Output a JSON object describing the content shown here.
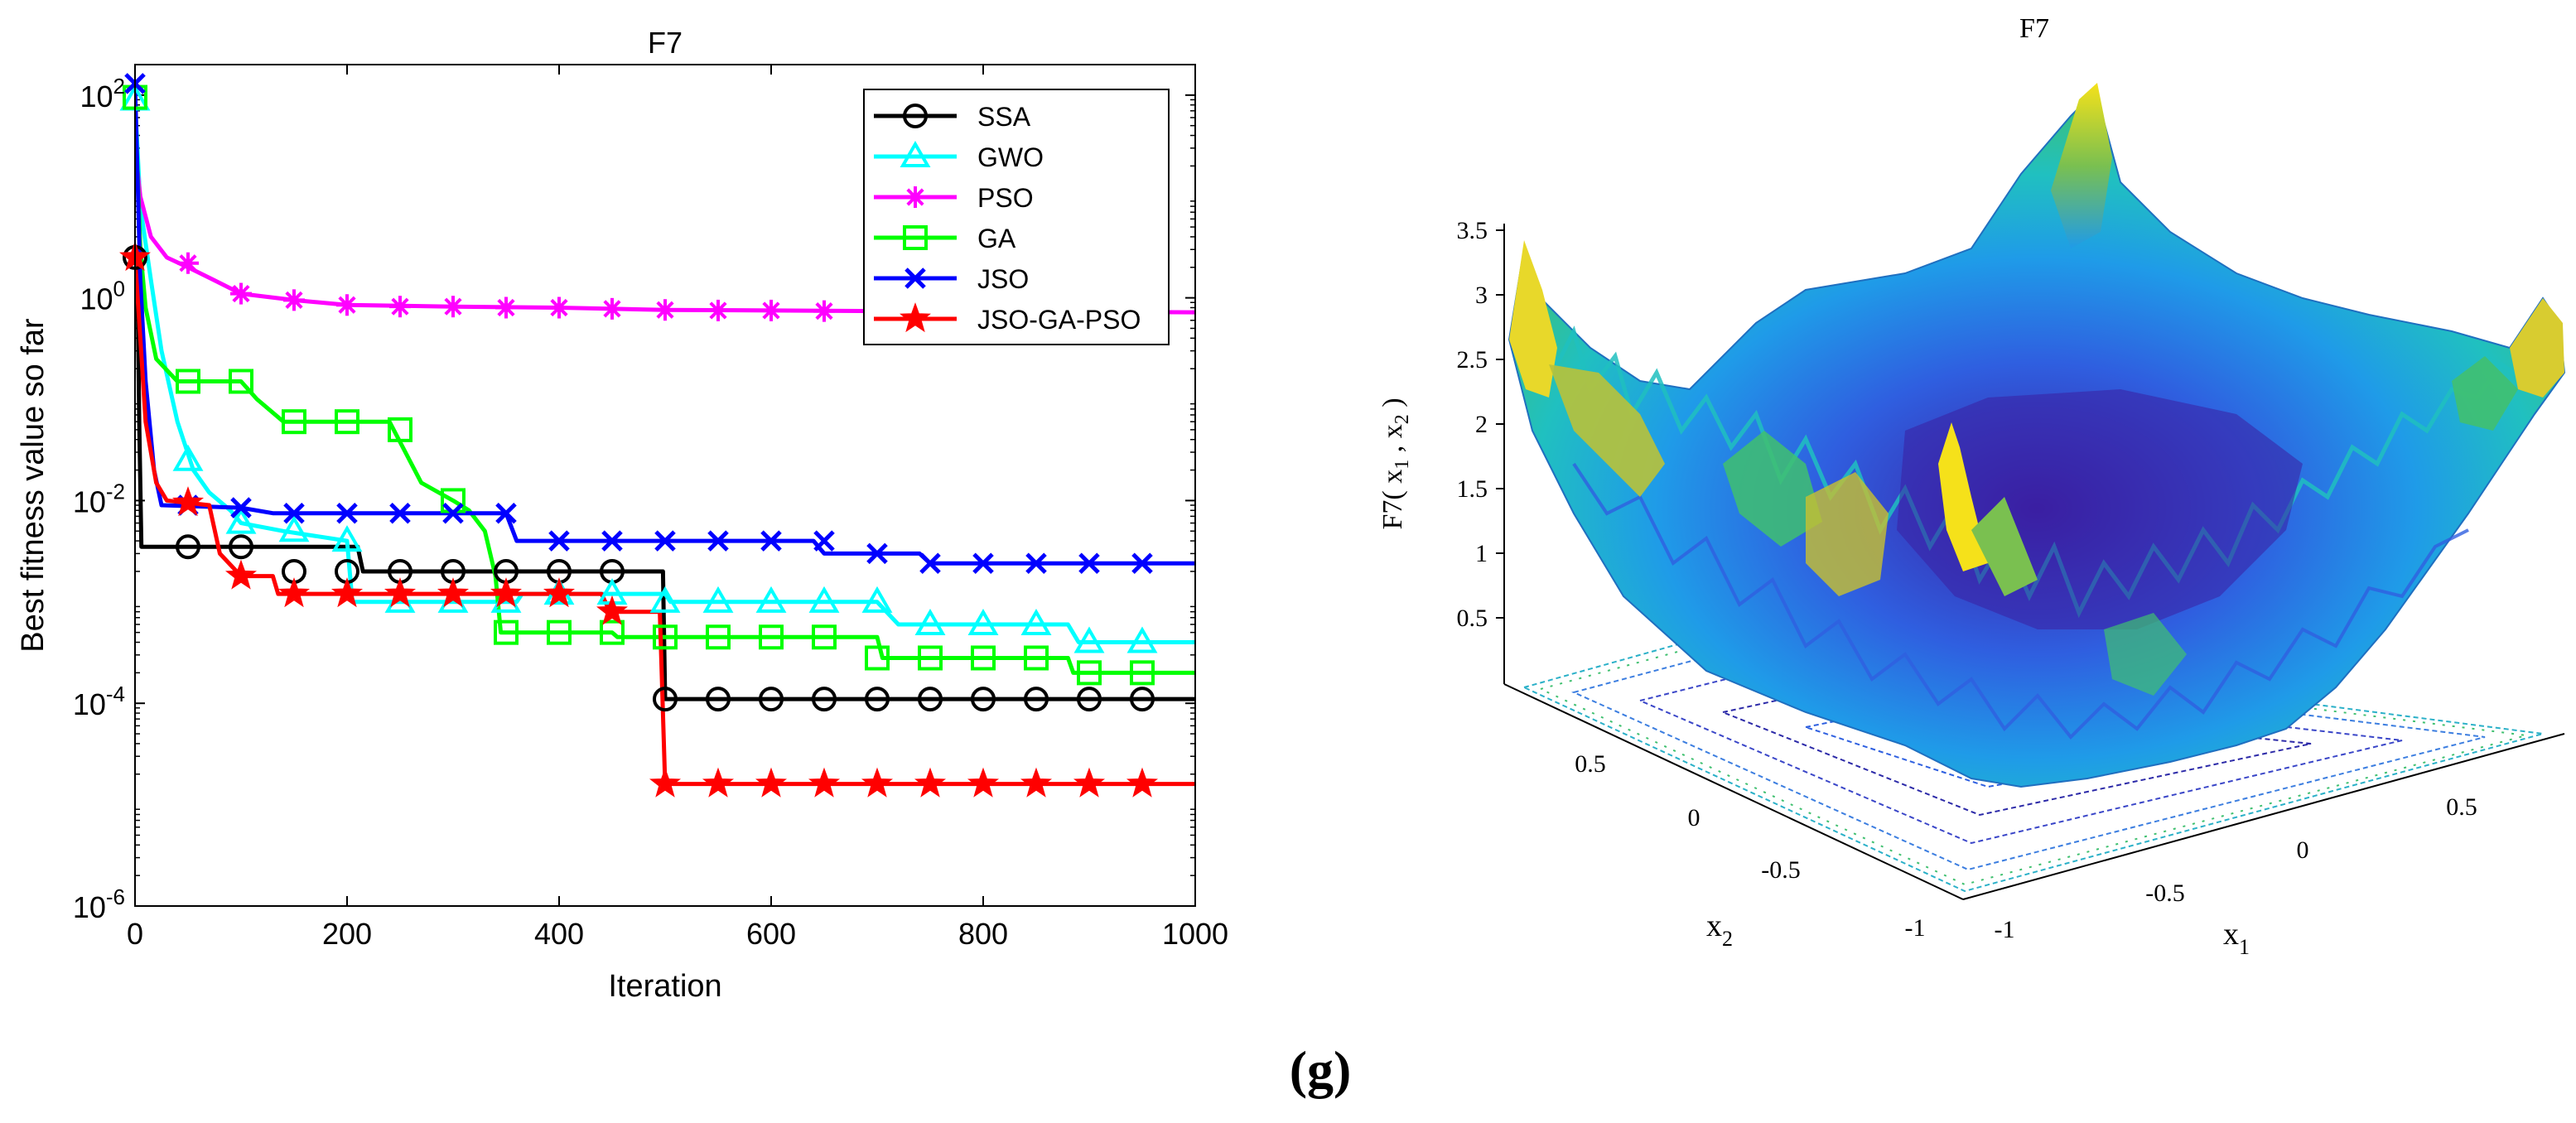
{
  "chart_data": [
    {
      "type": "line",
      "title": "F7",
      "xlabel": "Iteration",
      "ylabel": "Best fitness value so far",
      "xlim": [
        0,
        1000
      ],
      "ylim": [
        1e-06,
        200
      ],
      "yscale": "log",
      "xticks": [
        0,
        200,
        400,
        600,
        800,
        1000
      ],
      "xtick_labels": [
        "0",
        "200",
        "400",
        "600",
        "800",
        "1000"
      ],
      "yticks": [
        1e-06,
        0.0001,
        0.01,
        1,
        100
      ],
      "ytick_labels": [
        {
          "base": "10",
          "exp": "-6"
        },
        {
          "base": "10",
          "exp": "-4"
        },
        {
          "base": "10",
          "exp": "-2"
        },
        {
          "base": "10",
          "exp": "0"
        },
        {
          "base": "10",
          "exp": "2"
        }
      ],
      "grid": false,
      "legend_position": "top-right",
      "series": [
        {
          "name": "SSA",
          "color": "#000000",
          "marker": "circle",
          "points": [
            [
              0,
              2.5
            ],
            [
              2,
              2.5
            ],
            [
              4,
              0.06
            ],
            [
              6,
              0.0035
            ],
            [
              210,
              0.0035
            ],
            [
              215,
              0.002
            ],
            [
              498,
              0.002
            ],
            [
              500,
              0.00011
            ],
            [
              1000,
              0.00011
            ]
          ],
          "markers": [
            [
              0,
              2.5
            ],
            [
              50,
              0.0035
            ],
            [
              100,
              0.0035
            ],
            [
              150,
              0.002
            ],
            [
              200,
              0.002
            ],
            [
              250,
              0.002
            ],
            [
              300,
              0.002
            ],
            [
              350,
              0.002
            ],
            [
              400,
              0.002
            ],
            [
              450,
              0.002
            ],
            [
              500,
              0.00011
            ],
            [
              550,
              0.00011
            ],
            [
              600,
              0.00011
            ],
            [
              650,
              0.00011
            ],
            [
              700,
              0.00011
            ],
            [
              750,
              0.00011
            ],
            [
              800,
              0.00011
            ],
            [
              850,
              0.00011
            ],
            [
              900,
              0.00011
            ],
            [
              950,
              0.00011
            ]
          ]
        },
        {
          "name": "GWO",
          "color": "#00ffff",
          "marker": "triangle",
          "points": [
            [
              0,
              90
            ],
            [
              5,
              8
            ],
            [
              15,
              1.5
            ],
            [
              25,
              0.3
            ],
            [
              40,
              0.06
            ],
            [
              55,
              0.02
            ],
            [
              70,
              0.012
            ],
            [
              90,
              0.008
            ],
            [
              100,
              0.006
            ],
            [
              140,
              0.005
            ],
            [
              200,
              0.004
            ],
            [
              205,
              0.001
            ],
            [
              360,
              0.001
            ],
            [
              365,
              0.0012
            ],
            [
              500,
              0.0012
            ],
            [
              505,
              0.001
            ],
            [
              700,
              0.001
            ],
            [
              720,
              0.0006
            ],
            [
              880,
              0.0006
            ],
            [
              890,
              0.0004
            ],
            [
              1000,
              0.0004
            ]
          ],
          "markers": [
            [
              0,
              90
            ],
            [
              50,
              0.025
            ],
            [
              100,
              0.006
            ],
            [
              150,
              0.005
            ],
            [
              200,
              0.004
            ],
            [
              250,
              0.001
            ],
            [
              300,
              0.001
            ],
            [
              350,
              0.001
            ],
            [
              400,
              0.0012
            ],
            [
              450,
              0.0012
            ],
            [
              500,
              0.001
            ],
            [
              550,
              0.001
            ],
            [
              600,
              0.001
            ],
            [
              650,
              0.001
            ],
            [
              700,
              0.001
            ],
            [
              750,
              0.0006
            ],
            [
              800,
              0.0006
            ],
            [
              850,
              0.0006
            ],
            [
              900,
              0.0004
            ],
            [
              950,
              0.0004
            ]
          ]
        },
        {
          "name": "PSO",
          "color": "#ff00ff",
          "marker": "asterisk",
          "points": [
            [
              0,
              30
            ],
            [
              5,
              10
            ],
            [
              15,
              4
            ],
            [
              30,
              2.5
            ],
            [
              50,
              2
            ],
            [
              80,
              1.4
            ],
            [
              100,
              1.1
            ],
            [
              150,
              0.95
            ],
            [
              200,
              0.85
            ],
            [
              300,
              0.82
            ],
            [
              400,
              0.8
            ],
            [
              500,
              0.76
            ],
            [
              600,
              0.75
            ],
            [
              700,
              0.74
            ],
            [
              1000,
              0.72
            ]
          ],
          "markers": [
            [
              50,
              2.2
            ],
            [
              100,
              1.1
            ],
            [
              150,
              0.95
            ],
            [
              200,
              0.85
            ],
            [
              250,
              0.82
            ],
            [
              300,
              0.82
            ],
            [
              350,
              0.8
            ],
            [
              400,
              0.8
            ],
            [
              450,
              0.78
            ],
            [
              500,
              0.76
            ],
            [
              550,
              0.75
            ],
            [
              600,
              0.75
            ],
            [
              650,
              0.74
            ],
            [
              700,
              0.74
            ],
            [
              750,
              0.73
            ],
            [
              800,
              0.73
            ],
            [
              850,
              0.73
            ],
            [
              900,
              0.72
            ],
            [
              950,
              0.72
            ]
          ]
        },
        {
          "name": "GA",
          "color": "#00ff00",
          "marker": "square",
          "points": [
            [
              0,
              95
            ],
            [
              5,
              3
            ],
            [
              10,
              0.8
            ],
            [
              20,
              0.25
            ],
            [
              40,
              0.15
            ],
            [
              100,
              0.15
            ],
            [
              115,
              0.1
            ],
            [
              140,
              0.06
            ],
            [
              240,
              0.06
            ],
            [
              255,
              0.03
            ],
            [
              270,
              0.015
            ],
            [
              300,
              0.01
            ],
            [
              315,
              0.008
            ],
            [
              330,
              0.005
            ],
            [
              340,
              0.0018
            ],
            [
              345,
              0.0005
            ],
            [
              450,
              0.0005
            ],
            [
              455,
              0.00045
            ],
            [
              700,
              0.00045
            ],
            [
              705,
              0.00028
            ],
            [
              880,
              0.00028
            ],
            [
              885,
              0.0002
            ],
            [
              1000,
              0.0002
            ]
          ],
          "markers": [
            [
              0,
              95
            ],
            [
              50,
              0.15
            ],
            [
              100,
              0.15
            ],
            [
              150,
              0.06
            ],
            [
              200,
              0.06
            ],
            [
              250,
              0.05
            ],
            [
              300,
              0.01
            ],
            [
              350,
              0.0005
            ],
            [
              400,
              0.0005
            ],
            [
              450,
              0.0005
            ],
            [
              500,
              0.00045
            ],
            [
              550,
              0.00045
            ],
            [
              600,
              0.00045
            ],
            [
              650,
              0.00045
            ],
            [
              700,
              0.00028
            ],
            [
              750,
              0.00028
            ],
            [
              800,
              0.00028
            ],
            [
              850,
              0.00028
            ],
            [
              900,
              0.0002
            ],
            [
              950,
              0.0002
            ]
          ]
        },
        {
          "name": "JSO",
          "color": "#0000ff",
          "marker": "x",
          "points": [
            [
              0,
              130
            ],
            [
              5,
              1.5
            ],
            [
              10,
              0.15
            ],
            [
              18,
              0.02
            ],
            [
              25,
              0.009
            ],
            [
              100,
              0.0085
            ],
            [
              130,
              0.0075
            ],
            [
              350,
              0.0075
            ],
            [
              360,
              0.004
            ],
            [
              640,
              0.004
            ],
            [
              650,
              0.003
            ],
            [
              740,
              0.003
            ],
            [
              750,
              0.0024
            ],
            [
              1000,
              0.0024
            ]
          ],
          "markers": [
            [
              0,
              130
            ],
            [
              50,
              0.009
            ],
            [
              100,
              0.0085
            ],
            [
              150,
              0.0075
            ],
            [
              200,
              0.0075
            ],
            [
              250,
              0.0075
            ],
            [
              300,
              0.0075
            ],
            [
              350,
              0.0075
            ],
            [
              400,
              0.004
            ],
            [
              450,
              0.004
            ],
            [
              500,
              0.004
            ],
            [
              550,
              0.004
            ],
            [
              600,
              0.004
            ],
            [
              650,
              0.004
            ],
            [
              700,
              0.003
            ],
            [
              750,
              0.0024
            ],
            [
              800,
              0.0024
            ],
            [
              850,
              0.0024
            ],
            [
              900,
              0.0024
            ],
            [
              950,
              0.0024
            ]
          ]
        },
        {
          "name": "JSO-GA-PSO",
          "color": "#ff0000",
          "marker": "star",
          "points": [
            [
              0,
              2.5
            ],
            [
              5,
              0.4
            ],
            [
              10,
              0.06
            ],
            [
              20,
              0.015
            ],
            [
              30,
              0.01
            ],
            [
              70,
              0.009
            ],
            [
              80,
              0.003
            ],
            [
              100,
              0.0018
            ],
            [
              130,
              0.0018
            ],
            [
              135,
              0.0012
            ],
            [
              440,
              0.0012
            ],
            [
              448,
              0.0008
            ],
            [
              495,
              0.0008
            ],
            [
              500,
              1.6e-05
            ],
            [
              1000,
              1.6e-05
            ]
          ],
          "markers": [
            [
              0,
              2.5
            ],
            [
              50,
              0.0095
            ],
            [
              100,
              0.0018
            ],
            [
              150,
              0.0012
            ],
            [
              200,
              0.0012
            ],
            [
              250,
              0.0012
            ],
            [
              300,
              0.0012
            ],
            [
              350,
              0.0012
            ],
            [
              400,
              0.0012
            ],
            [
              450,
              0.0008
            ],
            [
              500,
              1.6e-05
            ],
            [
              550,
              1.6e-05
            ],
            [
              600,
              1.6e-05
            ],
            [
              650,
              1.6e-05
            ],
            [
              700,
              1.6e-05
            ],
            [
              750,
              1.6e-05
            ],
            [
              800,
              1.6e-05
            ],
            [
              850,
              1.6e-05
            ],
            [
              900,
              1.6e-05
            ],
            [
              950,
              1.6e-05
            ]
          ]
        }
      ]
    },
    {
      "type": "surface3d",
      "title": "F7",
      "xlabel": {
        "base": "x",
        "sub": "1"
      },
      "ylabel": {
        "base": "x",
        "sub": "2"
      },
      "zlabel": {
        "parts": [
          "F7( x",
          "1",
          " , x",
          "2",
          " )"
        ]
      },
      "x_ticks": [
        "-1",
        "-0.5",
        "0",
        "0.5"
      ],
      "y_ticks": [
        "-1",
        "-0.5",
        "0",
        "0.5"
      ],
      "z_ticks": [
        "0.5",
        "1",
        "1.5",
        "2",
        "2.5",
        "3",
        "3.5"
      ],
      "xlim": [
        -1,
        1
      ],
      "ylim": [
        -1,
        1
      ],
      "zlim": [
        0,
        3.6
      ],
      "colormap": [
        "#3b1fa3",
        "#2f5fe0",
        "#1f9be8",
        "#20c0c0",
        "#40c070",
        "#c8c030",
        "#f5e11a"
      ]
    }
  ],
  "caption": "(g)"
}
